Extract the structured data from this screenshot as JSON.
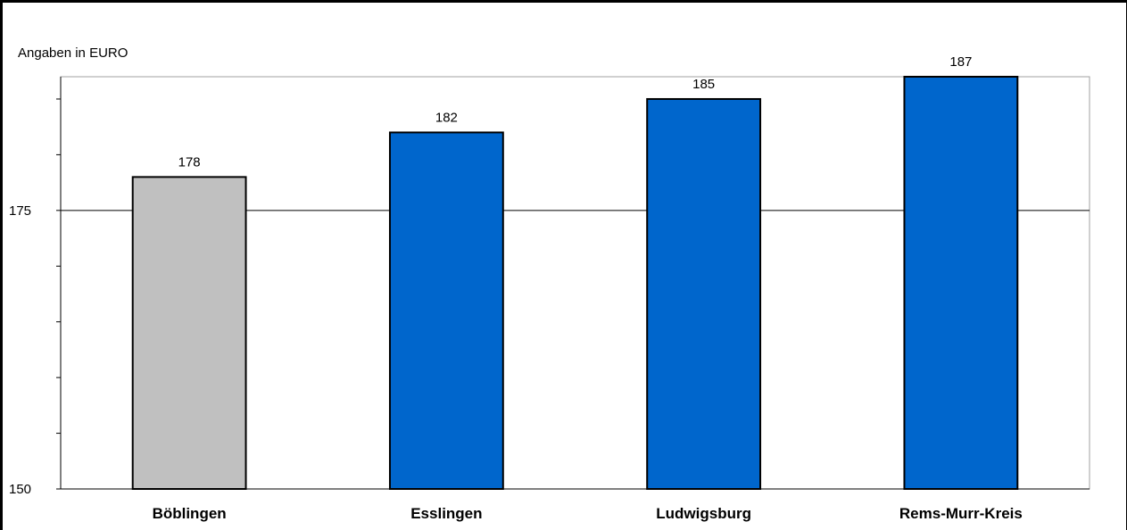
{
  "chart_data": {
    "type": "bar",
    "unit_label": "Angaben in EURO",
    "categories": [
      "Böblingen",
      "Esslingen",
      "Ludwigsburg",
      "Rems-Murr-Kreis"
    ],
    "values": [
      178,
      182,
      185,
      187
    ],
    "value_labels": [
      "178",
      "182",
      "185",
      "187"
    ],
    "bar_colors": [
      "#c0c0c0",
      "#0066cc",
      "#0066cc",
      "#0066cc"
    ],
    "ylim": [
      150,
      187
    ],
    "yticks": [
      150,
      175
    ],
    "ytick_labels": [
      "150",
      "175"
    ],
    "minor_tick_step": 5,
    "gridlines": [
      175
    ],
    "grid": true,
    "legend": "none"
  }
}
